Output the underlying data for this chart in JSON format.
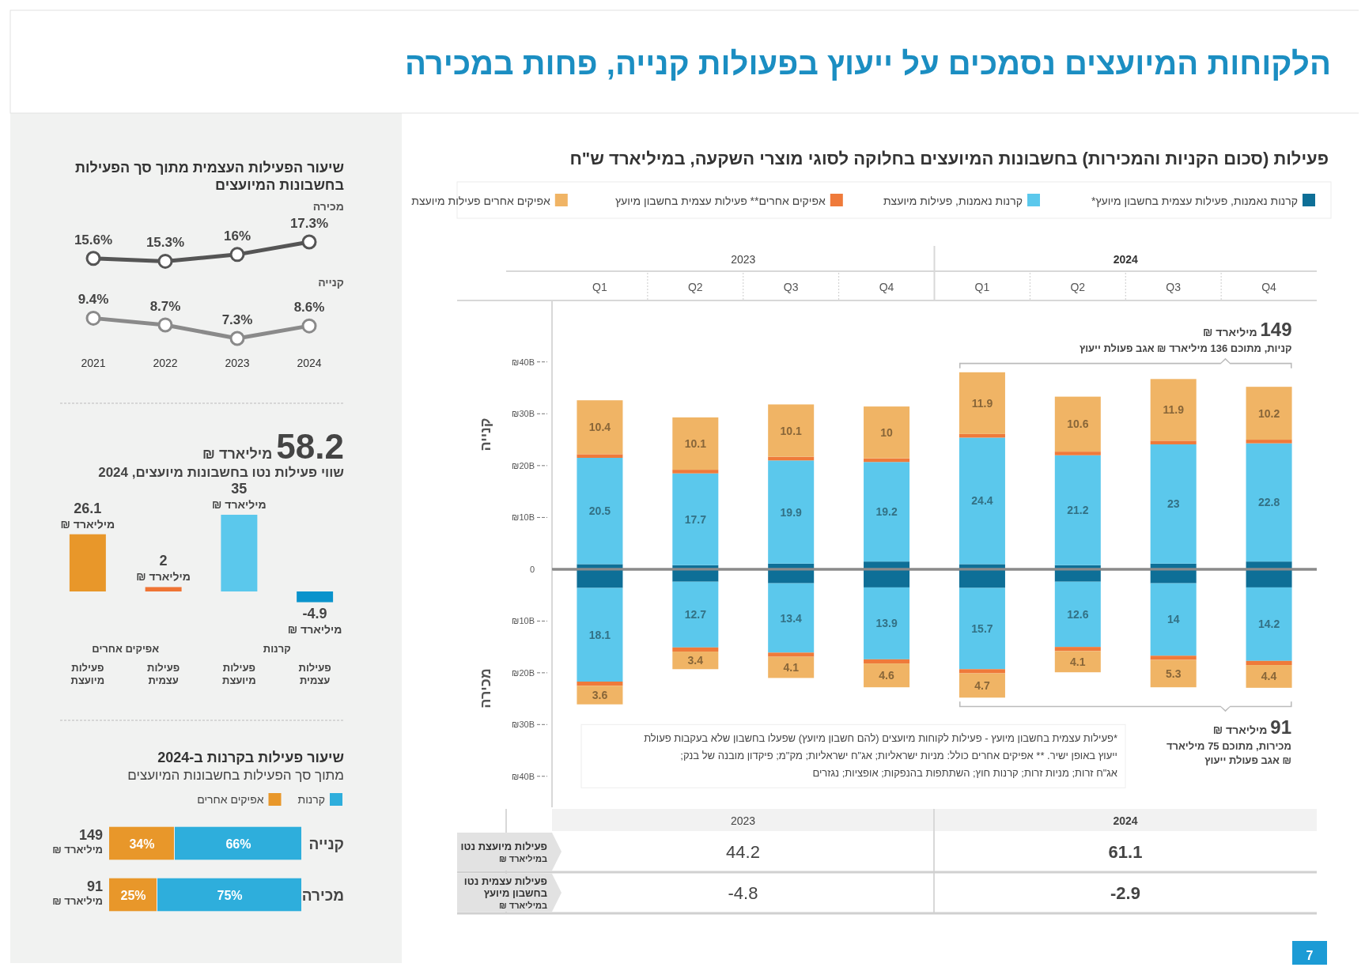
{
  "chart_data": [
    {
      "type": "other",
      "title": "הלקוחות המיועצים נסמכים על ייעוץ בפעולות קנייה, פחות במכירה",
      "annotations": [
        "7"
      ]
    },
    {
      "type": "bar",
      "title": "פעילות (סכום הקניות והמכירות) בחשבונות המיועצים בחלוקה לסוגי מוצרי השקעה, במיליארד ש\"ח",
      "ylabel": "קנייה",
      "categories": [
        "Q1",
        "Q2",
        "Q3",
        "Q4",
        "Q1",
        "Q2",
        "Q3",
        "Q4"
      ],
      "stacked": true,
      "legend": "top",
      "ylim": [
        0,
        52
      ],
      "yticks": [
        0,
        {
          "value": 10,
          "label": "₪10B"
        },
        {
          "value": 20,
          "label": "₪20B"
        },
        {
          "value": 30,
          "label": "₪30B"
        },
        {
          "value": 40,
          "label": "₪40B"
        }
      ],
      "series": [
        {
          "name": "קרנות נאמנות, פעילות עצמית בחשבון מיועץ*",
          "color": "#0e6f97",
          "values": [
            1,
            0.8,
            1.1,
            1.5,
            1,
            0.8,
            1.1,
            1.5
          ]
        },
        {
          "name": "קרנות נאמנות, פעילות מיועצת",
          "color": "#5bc8ec",
          "values": [
            20.5,
            17.7,
            19.9,
            19.2,
            24.4,
            21.2,
            23,
            22.8
          ],
          "value_labels": [
            "20.5",
            "17.7",
            "19.9",
            "19.2",
            "24.4",
            "21.2",
            "23",
            "22.8"
          ]
        },
        {
          "name": "אפיקים אחרים** פעילות עצמית בחשבון מיועץ",
          "color": "#ef7a3a",
          "values": [
            0.7,
            0.7,
            0.7,
            0.7,
            0.7,
            0.7,
            0.7,
            0.7
          ]
        },
        {
          "name": "אפיקים אחרים פעילות מיועצת",
          "color": "#f0b465",
          "values": [
            10.4,
            10.1,
            10.1,
            10,
            11.9,
            10.6,
            11.9,
            10.2
          ],
          "value_labels": [
            "10.4",
            "10.1",
            "10.1",
            "10",
            "11.9",
            "10.6",
            "11.9",
            "10.2"
          ]
        }
      ],
      "annotations": [
        "2023",
        "2024",
        "149 מיליארד ₪",
        "קניות, מתוכם 136 מיליארד ₪ אגב פעולת ייעוץ"
      ]
    },
    {
      "type": "bar",
      "ylabel": "מכירה",
      "categories": [
        null,
        null,
        null,
        null,
        null,
        null,
        null,
        null
      ],
      "tick_labels": "y",
      "stacked": true,
      "ylim": [
        46,
        0
      ],
      "yticks": [
        {
          "value": 10,
          "label": "₪10B"
        },
        {
          "value": 20,
          "label": "₪20B"
        },
        {
          "value": 30,
          "label": "₪30B"
        },
        {
          "value": 40,
          "label": "₪40B"
        }
      ],
      "series": [
        {
          "color": "#0e6f97",
          "values": [
            3.6,
            2.4,
            2.7,
            3.5,
            3.6,
            2.4,
            2.7,
            3.5
          ]
        },
        {
          "color": "#5bc8ec",
          "values": [
            18.1,
            12.7,
            13.4,
            13.9,
            15.7,
            12.6,
            14,
            14.2
          ],
          "value_labels": [
            "18.1",
            "12.7",
            "13.4",
            "13.9",
            "15.7",
            "12.6",
            "14",
            "14.2"
          ]
        },
        {
          "color": "#ef7a3a",
          "values": [
            0.8,
            0.8,
            0.8,
            0.8,
            0.8,
            0.8,
            0.8,
            0.8
          ]
        },
        {
          "color": "#f0b465",
          "values": [
            3.6,
            3.4,
            4.1,
            4.6,
            4.7,
            4.1,
            5.3,
            4.4
          ],
          "value_labels": [
            "3.6",
            "3.4",
            "4.1",
            "4.6",
            "4.7",
            "4.1",
            "5.3",
            "4.4"
          ]
        }
      ],
      "annotations": [
        "91 מיליארד ₪",
        "מכירות, מתוכם 75 מיליארד ₪ אגב פעולת ייעוץ",
        "*פעילות עצמית בחשבון מיועץ - פעילות לקוחות מיועצים (להם חשבון מיועץ) שפעלו בחשבון שלא בעקבות פעולת ייעוץ באופן ישיר. ** אפיקים אחרים כולל: מניות ישראליות; אג\"ח ישראליות; מק\"מ; פיקדון מובנה של בנק; אג\"ח זרות; מניות זרות; קרנות חוץ; השתתפות בהנפקות; אופציות; נגזרים"
      ]
    },
    {
      "type": "other",
      "categories": [
        "2023",
        "2024"
      ],
      "data_labels": true,
      "series": [
        {
          "name": "פעילות מיועצת נטו\nבמיליארד ₪",
          "values": [
            44.2,
            61.1
          ]
        },
        {
          "name": "פעילות עצמית נטו\nבחשבון מיועץ\nבמיליארד ₪",
          "values": [
            -4.8,
            -2.9
          ]
        }
      ]
    },
    {
      "type": "line",
      "title": "שיעור הפעילות העצמית מתוך סך הפעילות בחשבונות המיועצים",
      "categories": [
        "2021",
        "2022",
        "2023",
        "2024"
      ],
      "marker": "circle",
      "series": [
        {
          "name": "מכירה",
          "color": "#555555",
          "values": [
            15.6,
            15.3,
            16,
            17.3
          ],
          "value_labels": [
            "15.6%",
            "15.3%",
            "16%",
            "17.3%"
          ]
        },
        {
          "name": "קנייה",
          "color": "#8a8a8a",
          "values": [
            9.4,
            8.7,
            7.3,
            8.6
          ],
          "value_labels": [
            "9.4%",
            "8.7%",
            "7.3%",
            "8.6%"
          ]
        }
      ]
    },
    {
      "type": "bar",
      "title": "58.2 מיליארד ₪",
      "subtitle": "שווי פעילות נטו בחשבונות מיועצים, 2024",
      "categories": [
        "פעילות מיועצת",
        "פעילות עצמית",
        "פעילות מיועצת",
        "פעילות עצמית"
      ],
      "values": [
        26.1,
        2,
        35,
        -4.9
      ],
      "colors": [
        "#e8972a",
        "#ef7434",
        "#5bc8ec",
        "#0a93cc"
      ],
      "value_labels": [
        "26.1\nמיליארד ₪",
        "2\nמיליארד ₪",
        "35\nמיליארד ₪",
        "-4.9\nמיליארד ₪"
      ],
      "annotations": [
        "אפיקים אחרים",
        "קרנות"
      ]
    },
    {
      "type": "bar",
      "orientation": "horizontal",
      "stacked": true,
      "title": "שיעור פעילות בקרנות ב-2024",
      "subtitle": "מתוך סך הפעילות בחשבונות המיועצים",
      "legend": "top right",
      "categories": [
        "קנייה",
        "מכירה"
      ],
      "series": [
        {
          "name": "קרנות",
          "color": "#2eaedc",
          "values": [
            66,
            75
          ],
          "value_labels": [
            "66%",
            "75%"
          ]
        },
        {
          "name": "אפיקים אחרים",
          "color": "#e8972a",
          "values": [
            34,
            25
          ],
          "value_labels": [
            "34%",
            "25%"
          ]
        }
      ],
      "annotations": [
        "149\nמיליארד ₪",
        "91\nמיליארד ₪"
      ]
    }
  ]
}
